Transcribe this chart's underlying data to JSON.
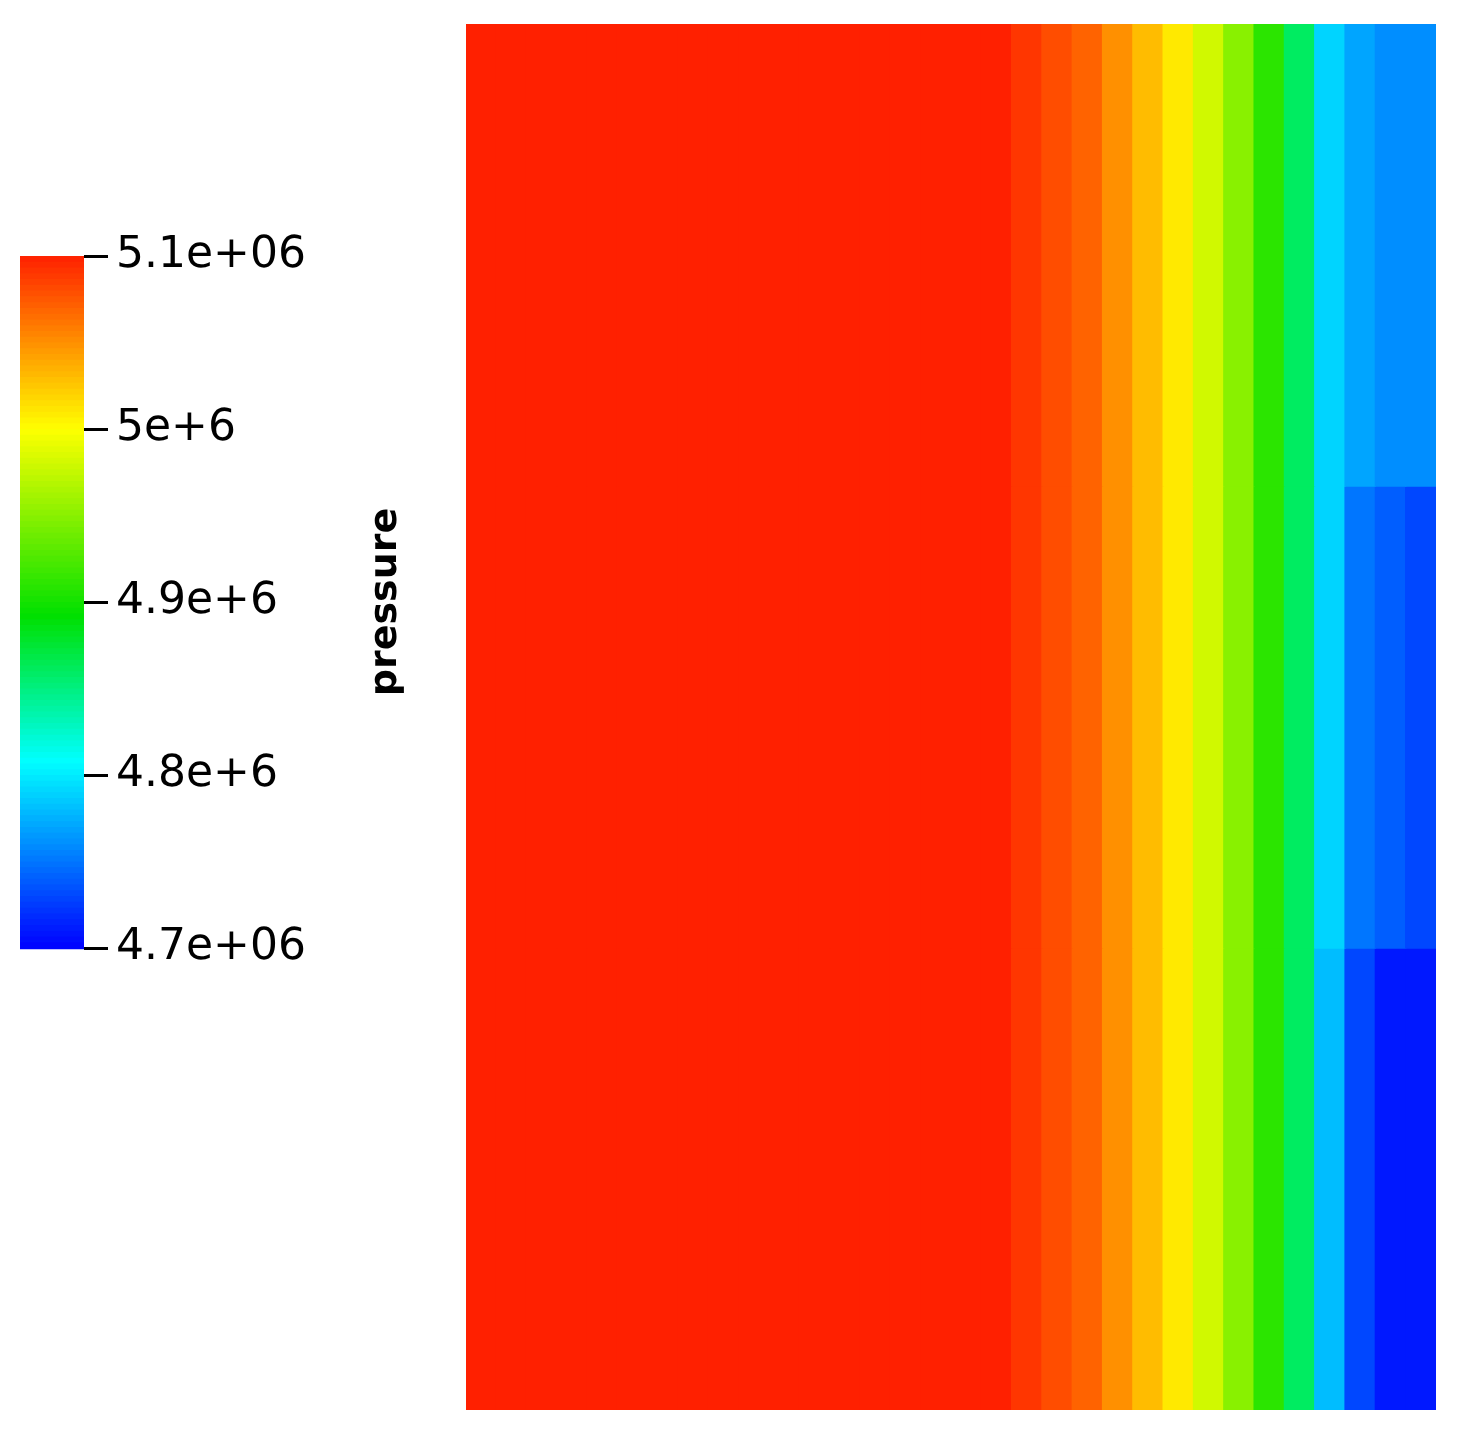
{
  "chart_data": {
    "type": "heatmap",
    "clabel": "pressure",
    "tick_labels": false,
    "categories": [
      null,
      null,
      null,
      null,
      null,
      null,
      null,
      null,
      null,
      null,
      null,
      null,
      null,
      null,
      null,
      null,
      null,
      null,
      null,
      null,
      null,
      null,
      null,
      null,
      null,
      null,
      null,
      null,
      null,
      null,
      null,
      null
    ],
    "y_categories": [
      null,
      null,
      null
    ],
    "cells": [
      [
        5100000,
        5100000,
        5100000,
        5100000,
        5100000,
        5100000,
        5100000,
        5100000,
        5100000,
        5100000,
        5100000,
        5100000,
        5100000,
        5100000,
        5100000,
        5100000,
        5100000,
        5100000,
        5090000,
        5080000,
        5070000,
        5050000,
        5030000,
        5010000,
        4980000,
        4950000,
        4910000,
        4860000,
        4790000,
        4770000,
        4760000,
        4760000
      ],
      [
        5100000,
        5100000,
        5100000,
        5100000,
        5100000,
        5100000,
        5100000,
        5100000,
        5100000,
        5100000,
        5100000,
        5100000,
        5100000,
        5100000,
        5100000,
        5100000,
        5100000,
        5100000,
        5090000,
        5080000,
        5070000,
        5050000,
        5030000,
        5010000,
        4980000,
        4950000,
        4910000,
        4860000,
        4790000,
        4750000,
        4740000,
        4730000
      ],
      [
        5100000,
        5100000,
        5100000,
        5100000,
        5100000,
        5100000,
        5100000,
        5100000,
        5100000,
        5100000,
        5100000,
        5100000,
        5100000,
        5100000,
        5100000,
        5100000,
        5100000,
        5100000,
        5090000,
        5080000,
        5070000,
        5050000,
        5030000,
        5010000,
        4980000,
        4950000,
        4910000,
        4860000,
        4780000,
        4730000,
        4710000,
        4710000
      ]
    ],
    "clim": [
      4700000,
      5100000
    ],
    "cticks": [
      {
        "value": 5100000,
        "label": "5.1e+06"
      },
      {
        "value": 5000000,
        "label": "5e+6"
      },
      {
        "value": 4900000,
        "label": "4.9e+6"
      },
      {
        "value": 4800000,
        "label": "4.8e+6"
      },
      {
        "value": 4700000,
        "label": "4.7e+06"
      }
    ]
  }
}
